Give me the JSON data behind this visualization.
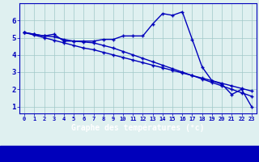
{
  "line1_x": [
    0,
    1,
    2,
    3,
    4,
    5,
    6,
    7,
    8,
    9,
    10,
    11,
    12,
    13,
    14,
    15,
    16,
    17,
    18,
    19,
    20,
    21,
    22,
    23
  ],
  "line1_y": [
    5.3,
    5.2,
    5.1,
    5.2,
    4.8,
    4.8,
    4.8,
    4.8,
    4.9,
    4.9,
    5.1,
    5.1,
    5.1,
    5.8,
    6.4,
    6.3,
    6.5,
    4.9,
    3.3,
    2.5,
    2.3,
    1.7,
    2.0,
    1.0
  ],
  "line2_x": [
    0,
    1,
    2,
    3,
    4,
    5,
    6,
    7,
    8,
    9,
    10,
    11,
    12,
    13,
    14,
    15,
    16,
    17,
    18,
    19,
    20,
    21,
    22,
    23
  ],
  "line2_y": [
    5.3,
    5.15,
    5.0,
    4.85,
    4.7,
    4.55,
    4.4,
    4.3,
    4.15,
    4.0,
    3.85,
    3.7,
    3.55,
    3.4,
    3.25,
    3.1,
    2.95,
    2.8,
    2.65,
    2.5,
    2.35,
    2.2,
    2.05,
    1.9
  ],
  "line3_x": [
    0,
    1,
    2,
    3,
    4,
    5,
    6,
    7,
    8,
    9,
    10,
    11,
    12,
    13,
    14,
    15,
    16,
    17,
    18,
    19,
    20,
    21,
    22,
    23
  ],
  "line3_y": [
    5.3,
    5.2,
    5.1,
    5.05,
    4.9,
    4.8,
    4.75,
    4.7,
    4.55,
    4.4,
    4.2,
    4.0,
    3.8,
    3.6,
    3.4,
    3.2,
    3.0,
    2.8,
    2.6,
    2.4,
    2.2,
    2.0,
    1.8,
    1.6
  ],
  "bg_color": "#dff0f0",
  "line_color": "#0000bb",
  "xlabel": "Graphe des températures (°c)",
  "xlabel_bg": "#0000bb",
  "xlabel_fg": "#ffffff",
  "xlabel_fontsize": 7.0,
  "yticks": [
    1,
    2,
    3,
    4,
    5,
    6
  ],
  "xtick_labels": [
    "0",
    "1",
    "2",
    "3",
    "4",
    "5",
    "6",
    "7",
    "8",
    "9",
    "10",
    "11",
    "12",
    "13",
    "14",
    "15",
    "16",
    "17",
    "18",
    "19",
    "20",
    "21",
    "22",
    "23"
  ],
  "xlim": [
    -0.5,
    23.5
  ],
  "ylim": [
    0.6,
    7.0
  ]
}
